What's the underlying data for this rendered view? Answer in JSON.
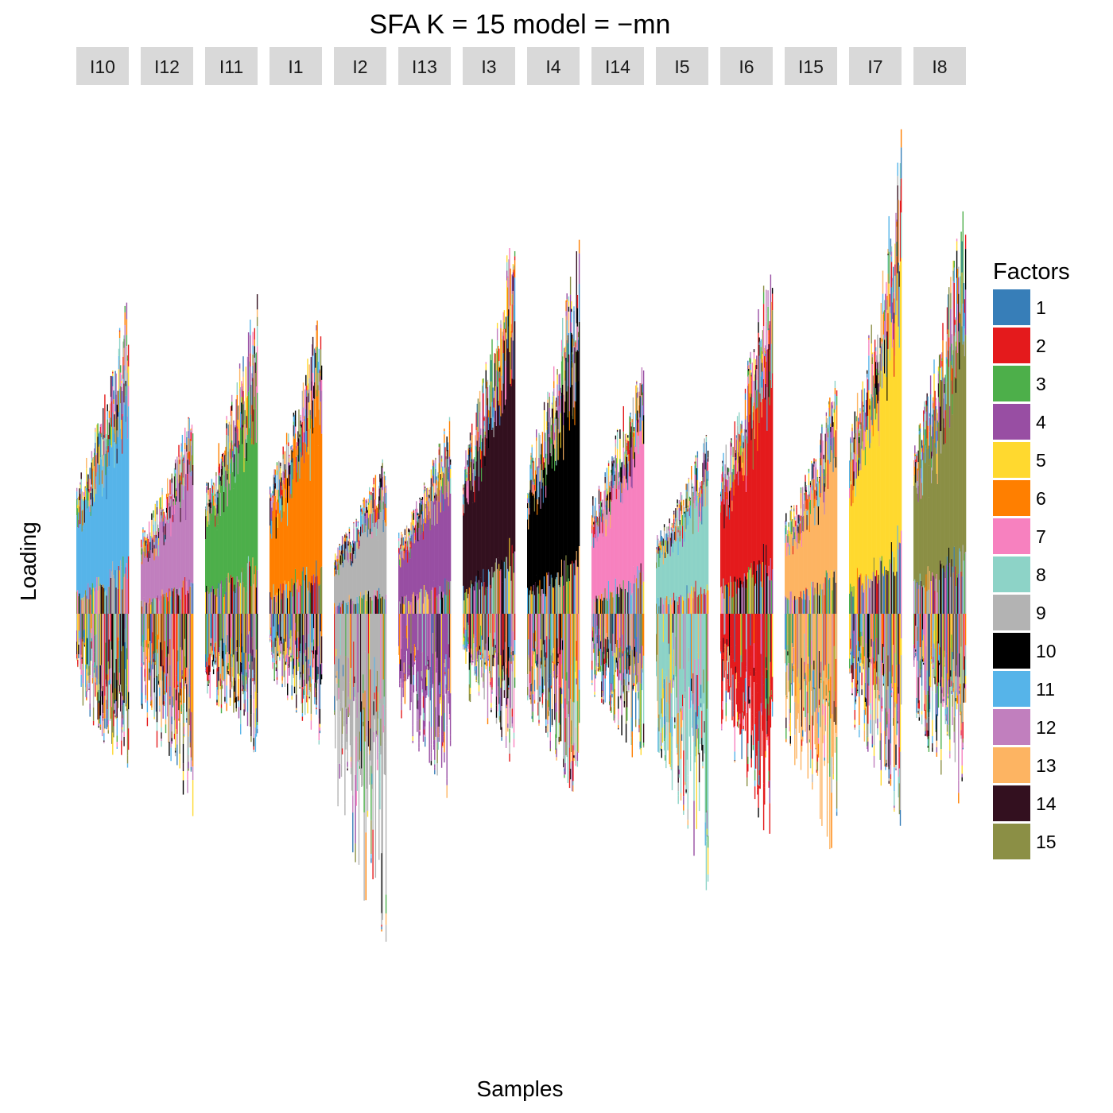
{
  "chart_data": {
    "type": "bar",
    "subtype": "stacked-faceted",
    "title": "SFA K = 15 model =  −mn",
    "xlabel": "Samples",
    "ylabel": "Loading",
    "legend": {
      "title": "Factors",
      "position": "right",
      "items": [
        {
          "label": "1",
          "color": "#377eb8"
        },
        {
          "label": "2",
          "color": "#e41a1c"
        },
        {
          "label": "3",
          "color": "#4daf4a"
        },
        {
          "label": "4",
          "color": "#984ea3"
        },
        {
          "label": "5",
          "color": "#ffd92f"
        },
        {
          "label": "6",
          "color": "#ff7f00"
        },
        {
          "label": "7",
          "color": "#f781bf"
        },
        {
          "label": "8",
          "color": "#8dd3c7"
        },
        {
          "label": "9",
          "color": "#b3b3b3"
        },
        {
          "label": "10",
          "color": "#000000"
        },
        {
          "label": "11",
          "color": "#56b4e9"
        },
        {
          "label": "12",
          "color": "#c17fbe"
        },
        {
          "label": "13",
          "color": "#fdb462"
        },
        {
          "label": "14",
          "color": "#33101f"
        },
        {
          "label": "15",
          "color": "#8b8f45"
        }
      ]
    },
    "grid": false,
    "axes_ticks": false,
    "ylim": [
      -1.0,
      1.3
    ],
    "panels": [
      {
        "label": "I10",
        "dominant_factor": "11",
        "max_positive": 0.88,
        "max_negative": -0.46
      },
      {
        "label": "I12",
        "dominant_factor": "12",
        "max_positive": 0.56,
        "max_negative": -0.55
      },
      {
        "label": "I11",
        "dominant_factor": "3",
        "max_positive": 0.89,
        "max_negative": -0.42
      },
      {
        "label": "I1",
        "dominant_factor": "6",
        "max_positive": 0.88,
        "max_negative": -0.36
      },
      {
        "label": "I2",
        "dominant_factor": "9",
        "max_positive": 0.44,
        "max_negative": -0.98
      },
      {
        "label": "I13",
        "dominant_factor": "4",
        "max_positive": 0.54,
        "max_negative": -0.54
      },
      {
        "label": "I3",
        "dominant_factor": "14",
        "max_positive": 1.09,
        "max_negative": -0.42
      },
      {
        "label": "I4",
        "dominant_factor": "10",
        "max_positive": 1.03,
        "max_negative": -0.53
      },
      {
        "label": "I14",
        "dominant_factor": "7",
        "max_positive": 0.76,
        "max_negative": -0.45
      },
      {
        "label": "I5",
        "dominant_factor": "8",
        "max_positive": 0.51,
        "max_negative": -0.75
      },
      {
        "label": "I6",
        "dominant_factor": "2",
        "max_positive": 1.02,
        "max_negative": -0.63
      },
      {
        "label": "I15",
        "dominant_factor": "13",
        "max_positive": 0.64,
        "max_negative": -0.68
      },
      {
        "label": "I7",
        "dominant_factor": "5",
        "max_positive": 1.29,
        "max_negative": -0.58
      },
      {
        "label": "I8",
        "dominant_factor": "15",
        "max_positive": 1.15,
        "max_negative": -0.57
      }
    ]
  }
}
